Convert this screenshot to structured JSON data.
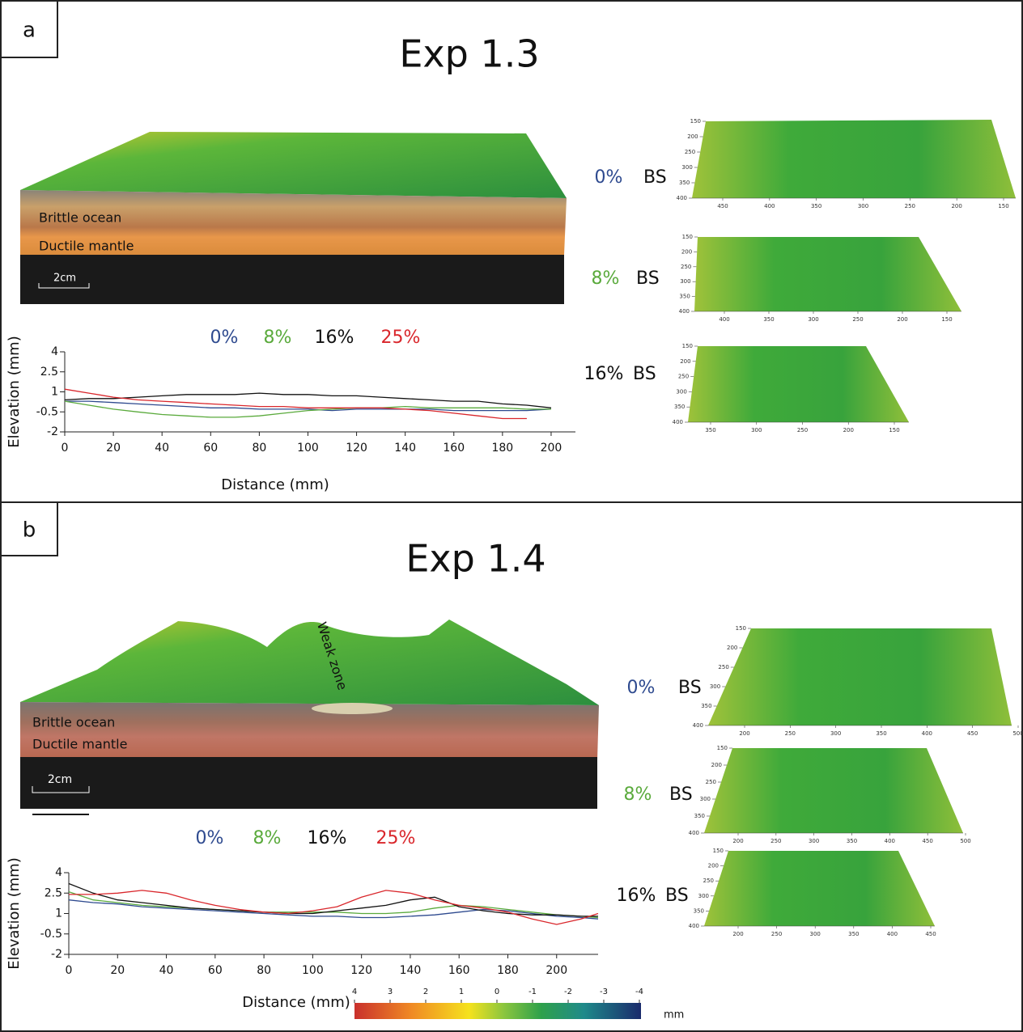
{
  "panels": [
    {
      "label": "a",
      "title": "Exp 1.3",
      "layers": [
        "Brittle ocean",
        "Ductile mantle"
      ],
      "scale": "2cm",
      "surfaces": [
        {
          "label": "0%",
          "color": "#2e4a8f",
          "suffix": "BS",
          "xticks": [
            450,
            400,
            350,
            300,
            250,
            200,
            150
          ],
          "yticks": [
            150,
            200,
            250,
            300,
            350,
            400
          ]
        },
        {
          "label": "8%",
          "color": "#5aaa3c",
          "suffix": "BS",
          "xticks": [
            400,
            350,
            300,
            250,
            200,
            150
          ],
          "yticks": [
            150,
            200,
            250,
            300,
            350,
            400
          ]
        },
        {
          "label": "16%",
          "color": "#111111",
          "suffix": "BS",
          "xticks": [
            350,
            300,
            250,
            200,
            150
          ],
          "yticks": [
            150,
            200,
            250,
            300,
            350,
            400
          ]
        }
      ]
    },
    {
      "label": "b",
      "title": "Exp 1.4",
      "layers": [
        "Brittle ocean",
        "Ductile mantle"
      ],
      "scale": "2cm",
      "annotation": "Weak zone",
      "surfaces": [
        {
          "label": "0%",
          "color": "#2e4a8f",
          "suffix": "BS",
          "xticks": [
            200,
            250,
            300,
            350,
            400,
            450,
            500
          ],
          "yticks": [
            150,
            200,
            250,
            300,
            350,
            400
          ]
        },
        {
          "label": "8%",
          "color": "#5aaa3c",
          "suffix": "BS",
          "xticks": [
            200,
            250,
            300,
            350,
            400,
            450,
            500
          ],
          "yticks": [
            150,
            200,
            250,
            300,
            350,
            400
          ]
        },
        {
          "label": "16%",
          "color": "#111111",
          "suffix": "BS",
          "xticks": [
            200,
            250,
            300,
            350,
            400,
            450
          ],
          "yticks": [
            150,
            200,
            250,
            300,
            350,
            400
          ]
        }
      ]
    }
  ],
  "chart_data": [
    {
      "type": "line",
      "x_label": "Distance (mm)",
      "y_label": "Elevation (mm)",
      "x": [
        0,
        10,
        20,
        30,
        40,
        50,
        60,
        70,
        80,
        90,
        100,
        110,
        120,
        130,
        140,
        150,
        160,
        170,
        180,
        190,
        200
      ],
      "xlim": [
        0,
        210
      ],
      "xticks": [
        0,
        20,
        40,
        60,
        80,
        100,
        120,
        140,
        160,
        180,
        200
      ],
      "ylim": [
        -2,
        4
      ],
      "yticks": [
        -2,
        -0.5,
        1,
        2.5,
        4
      ],
      "series": [
        {
          "name": "0%",
          "color": "#2e4a8f",
          "values": [
            0.3,
            0.3,
            0.2,
            0.1,
            0,
            -0.1,
            -0.2,
            -0.2,
            -0.3,
            -0.3,
            -0.3,
            -0.4,
            -0.3,
            -0.3,
            -0.3,
            -0.3,
            -0.4,
            -0.4,
            -0.4,
            -0.4,
            -0.3
          ]
        },
        {
          "name": "8%",
          "color": "#5aaa3c",
          "values": [
            0.3,
            0,
            -0.3,
            -0.5,
            -0.7,
            -0.8,
            -0.9,
            -0.9,
            -0.8,
            -0.6,
            -0.4,
            -0.3,
            -0.2,
            -0.2,
            -0.1,
            -0.2,
            -0.2,
            -0.2,
            -0.2,
            -0.3,
            -0.3
          ]
        },
        {
          "name": "16%",
          "color": "#111111",
          "values": [
            0.4,
            0.5,
            0.5,
            0.6,
            0.7,
            0.8,
            0.8,
            0.8,
            0.9,
            0.8,
            0.8,
            0.7,
            0.7,
            0.6,
            0.5,
            0.4,
            0.3,
            0.3,
            0.1,
            0,
            -0.2
          ]
        },
        {
          "name": "25%",
          "color": "#d9262b",
          "values": [
            1.2,
            0.9,
            0.6,
            0.4,
            0.3,
            0.2,
            0.1,
            0,
            -0.1,
            -0.1,
            -0.2,
            -0.2,
            -0.2,
            -0.2,
            -0.3,
            -0.4,
            -0.6,
            -0.8,
            -1.0,
            -1.0,
            null
          ]
        }
      ]
    },
    {
      "type": "line",
      "x_label": "Distance (mm)",
      "y_label": "Elevation (mm)",
      "x": [
        0,
        10,
        20,
        30,
        40,
        50,
        60,
        70,
        80,
        90,
        100,
        110,
        120,
        130,
        140,
        150,
        160,
        170,
        180,
        190,
        200,
        210,
        217
      ],
      "xlim": [
        0,
        217
      ],
      "xticks": [
        0,
        20,
        40,
        60,
        80,
        100,
        120,
        140,
        160,
        180,
        200
      ],
      "ylim": [
        -2,
        4
      ],
      "yticks": [
        -2,
        -0.5,
        1,
        2.5,
        4
      ],
      "series": [
        {
          "name": "0%",
          "color": "#2e4a8f",
          "values": [
            2.0,
            1.8,
            1.7,
            1.5,
            1.4,
            1.3,
            1.2,
            1.1,
            1.0,
            0.9,
            0.8,
            0.8,
            0.7,
            0.7,
            0.8,
            0.9,
            1.1,
            1.3,
            1.2,
            1.0,
            0.8,
            0.7,
            0.6
          ]
        },
        {
          "name": "8%",
          "color": "#5aaa3c",
          "values": [
            2.6,
            2.0,
            1.8,
            1.6,
            1.5,
            1.4,
            1.3,
            1.2,
            1.1,
            1.1,
            1.1,
            1.1,
            1.0,
            1.0,
            1.1,
            1.4,
            1.6,
            1.5,
            1.3,
            1.1,
            0.9,
            0.8,
            0.7
          ]
        },
        {
          "name": "16%",
          "color": "#111111",
          "values": [
            3.2,
            2.5,
            2.0,
            1.8,
            1.6,
            1.4,
            1.3,
            1.2,
            1.1,
            1.0,
            1.0,
            1.2,
            1.4,
            1.6,
            2.0,
            2.2,
            1.5,
            1.2,
            1.0,
            0.9,
            0.9,
            0.8,
            0.8
          ]
        },
        {
          "name": "25%",
          "color": "#d9262b",
          "values": [
            2.4,
            2.4,
            2.5,
            2.7,
            2.5,
            2.0,
            1.6,
            1.3,
            1.1,
            1.0,
            1.2,
            1.5,
            2.2,
            2.7,
            2.5,
            2.0,
            1.6,
            1.4,
            1.1,
            0.6,
            0.2,
            0.6,
            1.0
          ]
        }
      ]
    }
  ],
  "colorbar": {
    "ticks": [
      4,
      3,
      2,
      1,
      0,
      -1,
      -2,
      -3,
      -4
    ],
    "lim": [
      4,
      -4
    ],
    "unit": "mm"
  }
}
